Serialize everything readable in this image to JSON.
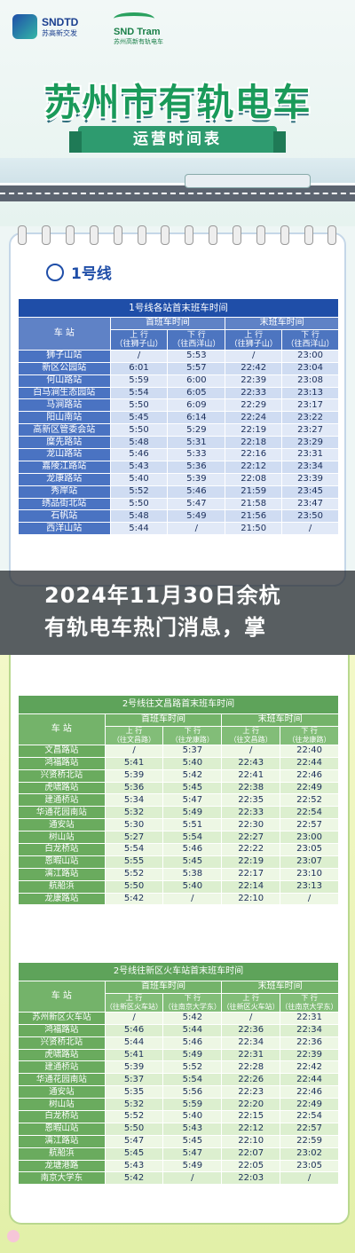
{
  "header": {
    "logo1": {
      "name": "SNDTD",
      "sub": "苏高新交发"
    },
    "logo2": {
      "name": "SND Tram",
      "sub": "苏州高新有轨电车"
    },
    "title": "苏州市有轨电车",
    "subtitle": "运营时间表"
  },
  "line1": {
    "label": "1号线",
    "table_title": "1号线各站首末班车时间",
    "station_col": "车  站",
    "first_col": "首班车时间",
    "last_col": "末班车时间",
    "up": "上  行",
    "down": "下  行",
    "up_dir": "（往狮子山）",
    "down_dir": "（往西洋山）",
    "rows": [
      [
        "狮子山站",
        "/",
        "5:53",
        "/",
        "23:00"
      ],
      [
        "新区公园站",
        "6:01",
        "5:57",
        "22:42",
        "23:04"
      ],
      [
        "何山路站",
        "5:59",
        "6:00",
        "22:39",
        "23:08"
      ],
      [
        "白马涧生态园站",
        "5:54",
        "6:05",
        "22:33",
        "23:13"
      ],
      [
        "马涧路站",
        "5:50",
        "6:09",
        "22:29",
        "23:17"
      ],
      [
        "阳山南站",
        "5:45",
        "6:14",
        "22:24",
        "23:22"
      ],
      [
        "高新区管委会站",
        "5:50",
        "5:29",
        "22:19",
        "23:27"
      ],
      [
        "糜先路站",
        "5:48",
        "5:31",
        "22:18",
        "23:29"
      ],
      [
        "龙山路站",
        "5:46",
        "5:33",
        "22:16",
        "23:31"
      ],
      [
        "嘉陵江路站",
        "5:43",
        "5:36",
        "22:12",
        "23:34"
      ],
      [
        "龙康路站",
        "5:40",
        "5:39",
        "22:08",
        "23:39"
      ],
      [
        "秀岸站",
        "5:52",
        "5:46",
        "21:59",
        "23:45"
      ],
      [
        "绣品街北站",
        "5:50",
        "5:47",
        "21:58",
        "23:47"
      ],
      [
        "石帆站",
        "5:48",
        "5:49",
        "21:56",
        "23:50"
      ],
      [
        "西洋山站",
        "5:44",
        "/",
        "21:50",
        "/"
      ]
    ]
  },
  "banner": {
    "line1": "2024年11月30日余杭",
    "line2": "有轨电车热门消息，掌"
  },
  "line2a": {
    "table_title": "2号线往文昌路首末班车时间",
    "station_col": "车  站",
    "first_col": "首班车时间",
    "last_col": "末班车时间",
    "up": "上  行",
    "down": "下  行",
    "up_dir": "（往文昌路）",
    "down_dir": "（往龙康路）",
    "rows": [
      [
        "文昌路站",
        "/",
        "5:37",
        "/",
        "22:40"
      ],
      [
        "鸿福路站",
        "5:41",
        "5:40",
        "22:43",
        "22:44"
      ],
      [
        "兴贤桥北站",
        "5:39",
        "5:42",
        "22:41",
        "22:46"
      ],
      [
        "虎啸路站",
        "5:36",
        "5:45",
        "22:38",
        "22:49"
      ],
      [
        "建通桥站",
        "5:34",
        "5:47",
        "22:35",
        "22:52"
      ],
      [
        "华通花园南站",
        "5:32",
        "5:49",
        "22:33",
        "22:54"
      ],
      [
        "通安站",
        "5:30",
        "5:51",
        "22:30",
        "22:57"
      ],
      [
        "树山站",
        "5:27",
        "5:54",
        "22:27",
        "23:00"
      ],
      [
        "白龙桥站",
        "5:54",
        "5:46",
        "22:22",
        "23:05"
      ],
      [
        "恩暇山站",
        "5:55",
        "5:45",
        "22:19",
        "23:07"
      ],
      [
        "漓江路站",
        "5:52",
        "5:38",
        "22:17",
        "23:10"
      ],
      [
        "航船浜",
        "5:50",
        "5:40",
        "22:14",
        "23:13"
      ],
      [
        "龙康路站",
        "5:42",
        "/",
        "22:10",
        "/"
      ]
    ]
  },
  "line2b": {
    "table_title": "2号线往新区火车站首末班车时间",
    "station_col": "车  站",
    "first_col": "首班车时间",
    "last_col": "末班车时间",
    "up": "上  行",
    "down": "下  行",
    "up_dir": "（往新区火车站）",
    "down_dir": "（往南京大学东）",
    "rows": [
      [
        "苏州新区火车站",
        "/",
        "5:42",
        "/",
        "22:31"
      ],
      [
        "鸿福路站",
        "5:46",
        "5:44",
        "22:36",
        "22:34"
      ],
      [
        "兴贤桥北站",
        "5:44",
        "5:46",
        "22:34",
        "22:36"
      ],
      [
        "虎啸路站",
        "5:41",
        "5:49",
        "22:31",
        "22:39"
      ],
      [
        "建通桥站",
        "5:39",
        "5:52",
        "22:28",
        "22:42"
      ],
      [
        "华通花园南站",
        "5:37",
        "5:54",
        "22:26",
        "22:44"
      ],
      [
        "通安站",
        "5:35",
        "5:56",
        "22:23",
        "22:46"
      ],
      [
        "树山站",
        "5:32",
        "5:59",
        "22:20",
        "22:49"
      ],
      [
        "白龙桥站",
        "5:52",
        "5:40",
        "22:15",
        "22:54"
      ],
      [
        "恩暇山站",
        "5:50",
        "5:43",
        "22:12",
        "22:57"
      ],
      [
        "漓江路站",
        "5:47",
        "5:45",
        "22:10",
        "22:59"
      ],
      [
        "航船浜",
        "5:45",
        "5:47",
        "22:07",
        "23:02"
      ],
      [
        "龙塘港路",
        "5:43",
        "5:49",
        "22:05",
        "23:05"
      ],
      [
        "南京大学东",
        "5:42",
        "/",
        "22:03",
        "/"
      ]
    ]
  }
}
